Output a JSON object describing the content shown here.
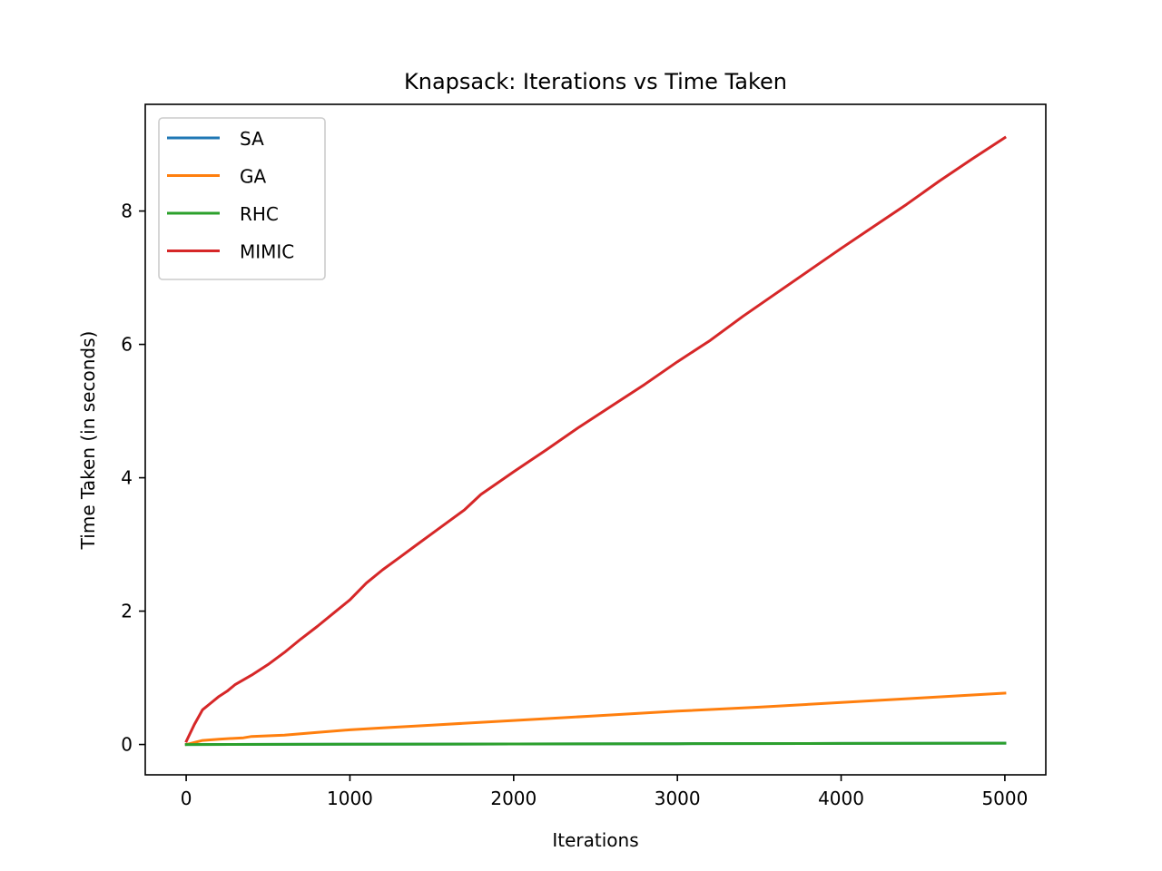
{
  "chart_data": {
    "type": "line",
    "title": "Knapsack: Iterations vs Time Taken",
    "xlabel": "Iterations",
    "ylabel": "Time Taken (in seconds)",
    "xlim": [
      -250,
      5250
    ],
    "ylim": [
      -0.455,
      9.6
    ],
    "xticks": [
      0,
      1000,
      2000,
      3000,
      4000,
      5000
    ],
    "yticks": [
      0,
      2,
      4,
      6,
      8
    ],
    "grid": false,
    "legend_position": "top-left",
    "series": [
      {
        "name": "SA",
        "color": "#1f77b4",
        "x": [
          1,
          1000,
          2000,
          3000,
          4000,
          5000
        ],
        "y": [
          0.0,
          0.004,
          0.008,
          0.012,
          0.016,
          0.02
        ]
      },
      {
        "name": "GA",
        "color": "#ff7f0e",
        "x": [
          1,
          100,
          200,
          350,
          400,
          600,
          800,
          1000,
          1200,
          1500,
          2000,
          2500,
          3000,
          3500,
          4000,
          4500,
          5000
        ],
        "y": [
          0.0,
          0.06,
          0.08,
          0.1,
          0.12,
          0.14,
          0.18,
          0.22,
          0.25,
          0.29,
          0.36,
          0.43,
          0.5,
          0.56,
          0.63,
          0.7,
          0.77
        ]
      },
      {
        "name": "RHC",
        "color": "#2ca02c",
        "x": [
          1,
          1000,
          2000,
          3000,
          4000,
          5000
        ],
        "y": [
          0.0,
          0.004,
          0.008,
          0.012,
          0.016,
          0.02
        ]
      },
      {
        "name": "MIMIC",
        "color": "#d62728",
        "x": [
          1,
          50,
          100,
          150,
          200,
          250,
          300,
          400,
          500,
          600,
          700,
          800,
          900,
          1000,
          1100,
          1200,
          1300,
          1400,
          1500,
          1600,
          1700,
          1800,
          1900,
          2000,
          2200,
          2400,
          2600,
          2800,
          3000,
          3200,
          3400,
          3600,
          3800,
          4000,
          4200,
          4400,
          4600,
          4800,
          5000
        ],
        "y": [
          0.05,
          0.3,
          0.52,
          0.62,
          0.72,
          0.8,
          0.9,
          1.04,
          1.2,
          1.38,
          1.58,
          1.77,
          1.97,
          2.17,
          2.42,
          2.62,
          2.8,
          2.98,
          3.16,
          3.34,
          3.52,
          3.75,
          3.92,
          4.09,
          4.42,
          4.76,
          5.08,
          5.4,
          5.74,
          6.06,
          6.42,
          6.76,
          7.1,
          7.44,
          7.77,
          8.1,
          8.45,
          8.78,
          9.1
        ]
      }
    ]
  }
}
